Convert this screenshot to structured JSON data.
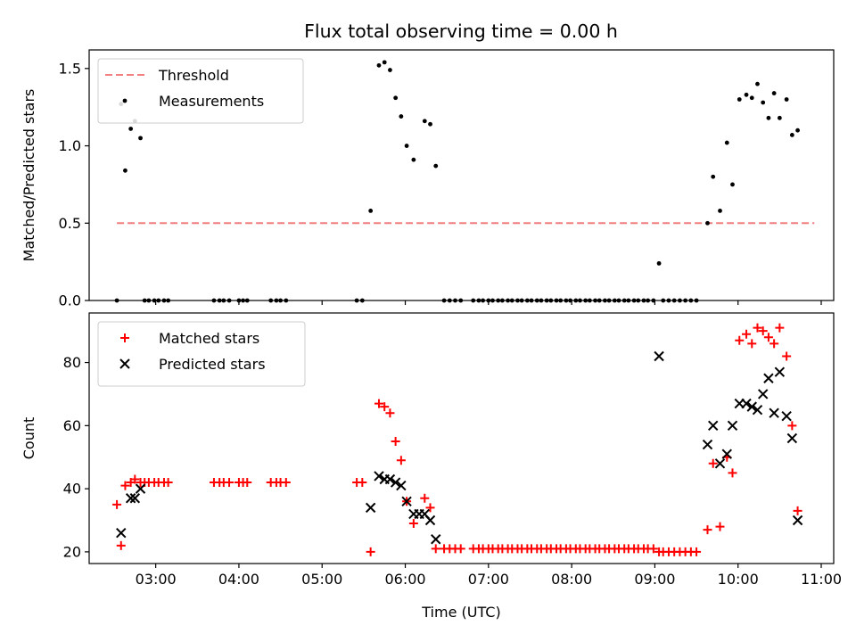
{
  "title": "Flux total observing time = 0.00 h",
  "chart_data": [
    {
      "type": "scatter",
      "ylabel": "Matched/Predicted stars",
      "xlim": [
        "02:12",
        "11:09"
      ],
      "ylim": [
        0,
        1.62
      ],
      "xticks": [
        "03:00",
        "04:00",
        "05:00",
        "06:00",
        "07:00",
        "08:00",
        "09:00",
        "10:00",
        "11:00"
      ],
      "yticks": [
        "0.0",
        "0.5",
        "1.0",
        "1.5"
      ],
      "legend_position": "upper left",
      "threshold": {
        "name": "Threshold",
        "value": 0.5,
        "x_start": "02:32",
        "x_end": "10:55",
        "color": "#f08080"
      },
      "series": [
        {
          "name": "Measurements",
          "color": "#000000",
          "points": [
            [
              "02:32",
              0
            ],
            [
              "02:35",
              1.27
            ],
            [
              "02:38",
              0.84
            ],
            [
              "02:42",
              1.11
            ],
            [
              "02:45",
              1.16
            ],
            [
              "02:49",
              1.05
            ],
            [
              "02:52",
              0
            ],
            [
              "02:55",
              0
            ],
            [
              "02:59",
              0
            ],
            [
              "03:02",
              0
            ],
            [
              "03:06",
              0
            ],
            [
              "03:09",
              0
            ],
            [
              "03:42",
              0
            ],
            [
              "03:46",
              0
            ],
            [
              "03:49",
              0
            ],
            [
              "03:53",
              0
            ],
            [
              "04:00",
              0
            ],
            [
              "04:03",
              0
            ],
            [
              "04:06",
              0
            ],
            [
              "04:23",
              0
            ],
            [
              "04:27",
              0
            ],
            [
              "04:30",
              0
            ],
            [
              "04:34",
              0
            ],
            [
              "05:25",
              0
            ],
            [
              "05:29",
              0
            ],
            [
              "05:35",
              0.58
            ],
            [
              "05:41",
              1.52
            ],
            [
              "05:45",
              1.54
            ],
            [
              "05:49",
              1.49
            ],
            [
              "05:53",
              1.31
            ],
            [
              "05:57",
              1.19
            ],
            [
              "06:01",
              1.0
            ],
            [
              "06:06",
              0.91
            ],
            [
              "06:14",
              1.16
            ],
            [
              "06:18",
              1.14
            ],
            [
              "06:22",
              0.87
            ],
            [
              "06:28",
              0
            ],
            [
              "06:32",
              0
            ],
            [
              "06:36",
              0
            ],
            [
              "06:40",
              0
            ],
            [
              "06:49",
              0
            ],
            [
              "06:53",
              0
            ],
            [
              "06:56",
              0
            ],
            [
              "07:00",
              0
            ],
            [
              "07:03",
              0
            ],
            [
              "07:07",
              0
            ],
            [
              "07:10",
              0
            ],
            [
              "07:14",
              0
            ],
            [
              "07:17",
              0
            ],
            [
              "07:21",
              0
            ],
            [
              "07:24",
              0
            ],
            [
              "07:28",
              0
            ],
            [
              "07:31",
              0
            ],
            [
              "07:35",
              0
            ],
            [
              "07:38",
              0
            ],
            [
              "07:42",
              0
            ],
            [
              "07:45",
              0
            ],
            [
              "07:49",
              0
            ],
            [
              "07:52",
              0
            ],
            [
              "07:56",
              0
            ],
            [
              "07:59",
              0
            ],
            [
              "08:03",
              0
            ],
            [
              "08:06",
              0
            ],
            [
              "08:10",
              0
            ],
            [
              "08:13",
              0
            ],
            [
              "08:17",
              0
            ],
            [
              "08:20",
              0
            ],
            [
              "08:24",
              0
            ],
            [
              "08:27",
              0
            ],
            [
              "08:31",
              0
            ],
            [
              "08:34",
              0
            ],
            [
              "08:38",
              0
            ],
            [
              "08:41",
              0
            ],
            [
              "08:45",
              0
            ],
            [
              "08:48",
              0
            ],
            [
              "08:52",
              0
            ],
            [
              "08:55",
              0
            ],
            [
              "08:59",
              0
            ],
            [
              "09:03",
              0.24
            ],
            [
              "09:06",
              0
            ],
            [
              "09:10",
              0
            ],
            [
              "09:14",
              0
            ],
            [
              "09:18",
              0
            ],
            [
              "09:22",
              0
            ],
            [
              "09:26",
              0
            ],
            [
              "09:30",
              0
            ],
            [
              "09:38",
              0.5
            ],
            [
              "09:42",
              0.8
            ],
            [
              "09:47",
              0.58
            ],
            [
              "09:52",
              1.02
            ],
            [
              "09:56",
              0.75
            ],
            [
              "10:01",
              1.3
            ],
            [
              "10:06",
              1.33
            ],
            [
              "10:10",
              1.31
            ],
            [
              "10:14",
              1.4
            ],
            [
              "10:18",
              1.28
            ],
            [
              "10:22",
              1.18
            ],
            [
              "10:26",
              1.34
            ],
            [
              "10:30",
              1.18
            ],
            [
              "10:35",
              1.3
            ],
            [
              "10:39",
              1.07
            ],
            [
              "10:43",
              1.1
            ]
          ]
        }
      ]
    },
    {
      "type": "scatter",
      "xlabel": "Time (UTC)",
      "ylabel": "Count",
      "xlim": [
        "02:12",
        "11:09"
      ],
      "ylim": [
        16.3,
        95.7
      ],
      "xticks": [
        "03:00",
        "04:00",
        "05:00",
        "06:00",
        "07:00",
        "08:00",
        "09:00",
        "10:00",
        "11:00"
      ],
      "yticks": [
        "20",
        "40",
        "60",
        "80"
      ],
      "legend_position": "upper left",
      "series": [
        {
          "name": "Matched stars",
          "color": "#ff0000",
          "marker": "plus",
          "points": [
            [
              "02:32",
              35
            ],
            [
              "02:35",
              22
            ],
            [
              "02:38",
              41
            ],
            [
              "02:42",
              42
            ],
            [
              "02:45",
              43
            ],
            [
              "02:49",
              42
            ],
            [
              "02:52",
              42
            ],
            [
              "02:55",
              42
            ],
            [
              "02:59",
              42
            ],
            [
              "03:02",
              42
            ],
            [
              "03:06",
              42
            ],
            [
              "03:09",
              42
            ],
            [
              "03:42",
              42
            ],
            [
              "03:46",
              42
            ],
            [
              "03:49",
              42
            ],
            [
              "03:53",
              42
            ],
            [
              "04:00",
              42
            ],
            [
              "04:03",
              42
            ],
            [
              "04:06",
              42
            ],
            [
              "04:23",
              42
            ],
            [
              "04:27",
              42
            ],
            [
              "04:30",
              42
            ],
            [
              "04:34",
              42
            ],
            [
              "05:25",
              42
            ],
            [
              "05:29",
              42
            ],
            [
              "05:35",
              20
            ],
            [
              "05:41",
              67
            ],
            [
              "05:45",
              66
            ],
            [
              "05:49",
              64
            ],
            [
              "05:53",
              55
            ],
            [
              "05:57",
              49
            ],
            [
              "06:01",
              36
            ],
            [
              "06:06",
              29
            ],
            [
              "06:14",
              37
            ],
            [
              "06:18",
              34
            ],
            [
              "06:22",
              21
            ],
            [
              "06:28",
              21
            ],
            [
              "06:32",
              21
            ],
            [
              "06:36",
              21
            ],
            [
              "06:40",
              21
            ],
            [
              "06:49",
              21
            ],
            [
              "06:53",
              21
            ],
            [
              "06:56",
              21
            ],
            [
              "07:00",
              21
            ],
            [
              "07:03",
              21
            ],
            [
              "07:07",
              21
            ],
            [
              "07:10",
              21
            ],
            [
              "07:14",
              21
            ],
            [
              "07:17",
              21
            ],
            [
              "07:21",
              21
            ],
            [
              "07:24",
              21
            ],
            [
              "07:28",
              21
            ],
            [
              "07:31",
              21
            ],
            [
              "07:35",
              21
            ],
            [
              "07:38",
              21
            ],
            [
              "07:42",
              21
            ],
            [
              "07:45",
              21
            ],
            [
              "07:49",
              21
            ],
            [
              "07:52",
              21
            ],
            [
              "07:56",
              21
            ],
            [
              "07:59",
              21
            ],
            [
              "08:03",
              21
            ],
            [
              "08:06",
              21
            ],
            [
              "08:10",
              21
            ],
            [
              "08:13",
              21
            ],
            [
              "08:17",
              21
            ],
            [
              "08:20",
              21
            ],
            [
              "08:24",
              21
            ],
            [
              "08:27",
              21
            ],
            [
              "08:31",
              21
            ],
            [
              "08:34",
              21
            ],
            [
              "08:38",
              21
            ],
            [
              "08:41",
              21
            ],
            [
              "08:45",
              21
            ],
            [
              "08:48",
              21
            ],
            [
              "08:52",
              21
            ],
            [
              "08:55",
              21
            ],
            [
              "08:59",
              21
            ],
            [
              "09:03",
              20
            ],
            [
              "09:06",
              20
            ],
            [
              "09:10",
              20
            ],
            [
              "09:14",
              20
            ],
            [
              "09:18",
              20
            ],
            [
              "09:22",
              20
            ],
            [
              "09:26",
              20
            ],
            [
              "09:30",
              20
            ],
            [
              "09:38",
              27
            ],
            [
              "09:42",
              48
            ],
            [
              "09:47",
              28
            ],
            [
              "09:52",
              50
            ],
            [
              "09:56",
              45
            ],
            [
              "10:01",
              87
            ],
            [
              "10:06",
              89
            ],
            [
              "10:10",
              86
            ],
            [
              "10:14",
              91
            ],
            [
              "10:18",
              90
            ],
            [
              "10:22",
              88
            ],
            [
              "10:26",
              86
            ],
            [
              "10:30",
              91
            ],
            [
              "10:35",
              82
            ],
            [
              "10:39",
              60
            ],
            [
              "10:43",
              33
            ]
          ]
        },
        {
          "name": "Predicted stars",
          "color": "#000000",
          "marker": "x",
          "points": [
            [
              "02:35",
              26
            ],
            [
              "02:42",
              37
            ],
            [
              "02:45",
              37
            ],
            [
              "02:49",
              40
            ],
            [
              "05:35",
              34
            ],
            [
              "05:41",
              44
            ],
            [
              "05:45",
              43
            ],
            [
              "05:49",
              43
            ],
            [
              "05:53",
              42
            ],
            [
              "05:57",
              41
            ],
            [
              "06:01",
              36
            ],
            [
              "06:06",
              32
            ],
            [
              "06:10",
              32
            ],
            [
              "06:14",
              32
            ],
            [
              "06:18",
              30
            ],
            [
              "06:22",
              24
            ],
            [
              "09:03",
              82
            ],
            [
              "09:38",
              54
            ],
            [
              "09:42",
              60
            ],
            [
              "09:47",
              48
            ],
            [
              "09:52",
              51
            ],
            [
              "09:56",
              60
            ],
            [
              "10:01",
              67
            ],
            [
              "10:06",
              67
            ],
            [
              "10:10",
              66
            ],
            [
              "10:14",
              65
            ],
            [
              "10:18",
              70
            ],
            [
              "10:22",
              75
            ],
            [
              "10:26",
              64
            ],
            [
              "10:30",
              77
            ],
            [
              "10:35",
              63
            ],
            [
              "10:39",
              56
            ],
            [
              "10:43",
              30
            ]
          ]
        }
      ]
    }
  ]
}
